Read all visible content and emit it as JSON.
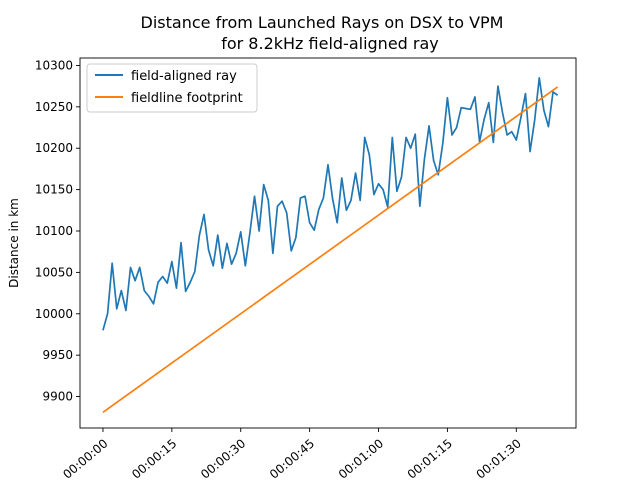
{
  "chart_data": {
    "type": "line",
    "title_line1": "Distance from Launched Rays on DSX to VPM",
    "title_line2": "for 8.2kHz field-aligned ray",
    "xlabel": "",
    "ylabel": "Distance in km",
    "x_unit": "seconds",
    "x_ticks": [
      "00:00:00",
      "00:00:15",
      "00:00:30",
      "00:00:45",
      "00:01:00",
      "00:01:15",
      "00:01:30"
    ],
    "x_tick_values": [
      0,
      15,
      30,
      45,
      60,
      75,
      90
    ],
    "xlim": [
      -5,
      103
    ],
    "y_ticks": [
      9900,
      9950,
      10000,
      10050,
      10100,
      10150,
      10200,
      10250,
      10300
    ],
    "ylim": [
      9862,
      10309
    ],
    "grid": false,
    "legend_position": "top-left",
    "series": [
      {
        "name": "field-aligned ray",
        "color": "#1f77b4",
        "x": [
          0,
          1,
          2,
          3,
          4,
          5,
          6,
          7,
          8,
          9,
          10,
          11,
          12,
          13,
          14,
          15,
          16,
          17,
          18,
          19,
          20,
          21,
          22,
          23,
          24,
          25,
          26,
          27,
          28,
          29,
          30,
          31,
          32,
          33,
          34,
          35,
          36,
          37,
          38,
          39,
          40,
          41,
          42,
          43,
          44,
          45,
          46,
          47,
          48,
          49,
          50,
          51,
          52,
          53,
          54,
          55,
          56,
          57,
          58,
          59,
          60,
          61,
          62,
          63,
          64,
          65,
          66,
          67,
          68,
          69,
          70,
          71,
          72,
          73,
          74,
          75,
          76,
          77,
          78,
          79,
          80,
          81,
          82,
          83,
          84,
          85,
          86,
          87,
          88,
          89,
          90,
          91,
          92,
          93,
          94,
          95,
          96,
          97,
          98,
          99
        ],
        "y": [
          9980,
          10000,
          10061,
          10006,
          10028,
          10004,
          10056,
          10040,
          10056,
          10028,
          10021,
          10012,
          10038,
          10045,
          10037,
          10063,
          10031,
          10086,
          10027,
          10038,
          10051,
          10095,
          10120,
          10077,
          10058,
          10095,
          10055,
          10085,
          10060,
          10073,
          10099,
          10058,
          10098,
          10142,
          10100,
          10156,
          10137,
          10073,
          10130,
          10136,
          10122,
          10076,
          10092,
          10140,
          10142,
          10110,
          10101,
          10126,
          10140,
          10180,
          10139,
          10110,
          10164,
          10125,
          10137,
          10170,
          10137,
          10213,
          10192,
          10144,
          10157,
          10150,
          10129,
          10213,
          10148,
          10165,
          10213,
          10200,
          10217,
          10130,
          10187,
          10227,
          10185,
          10168,
          10206,
          10261,
          10216,
          10225,
          10249,
          10248,
          10247,
          10262,
          10208,
          10235,
          10255,
          10207,
          10275,
          10243,
          10216,
          10220,
          10210,
          10237,
          10266,
          10196,
          10234,
          10285,
          10246,
          10226,
          10268,
          10264
        ]
      },
      {
        "name": "fieldline footprint",
        "color": "#ff7f0e",
        "x": [
          0,
          99
        ],
        "y": [
          9881,
          10274
        ]
      }
    ]
  }
}
